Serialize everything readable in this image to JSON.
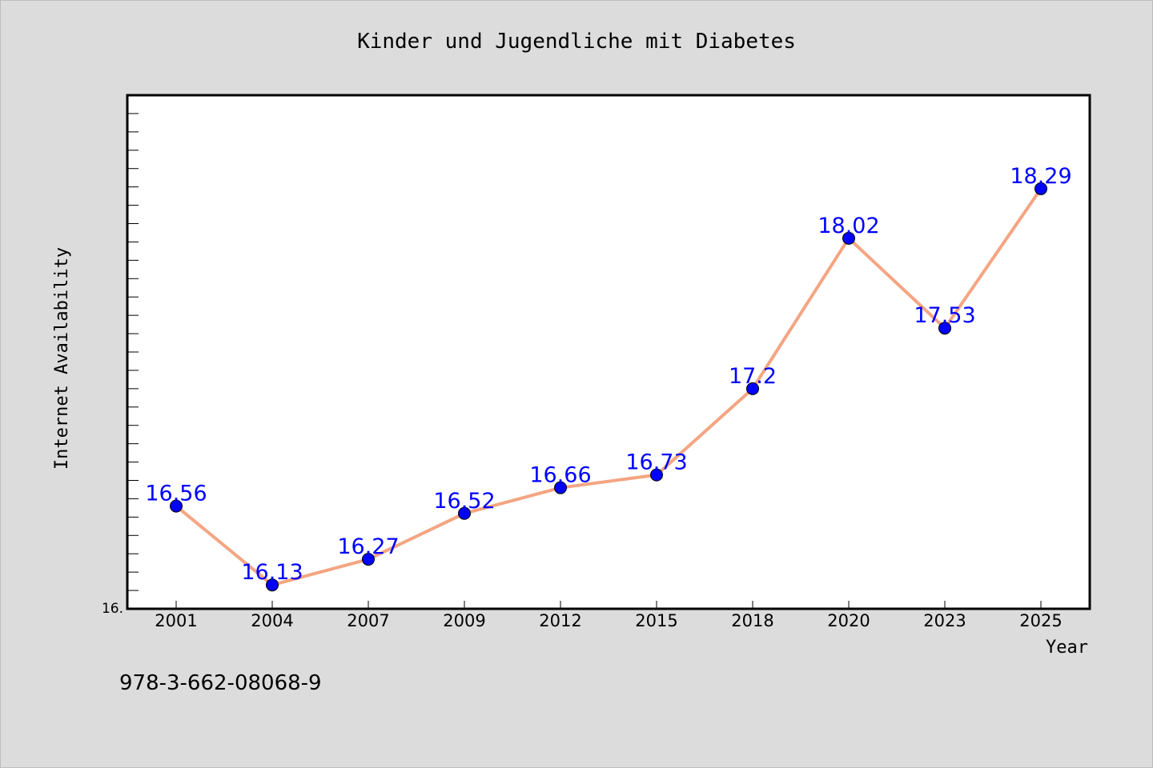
{
  "chart_data": {
    "type": "line",
    "title": "Kinder und Jugendliche mit Diabetes",
    "xlabel": "Year",
    "ylabel": "Internet Availability",
    "categories": [
      "2001",
      "2004",
      "2007",
      "2009",
      "2012",
      "2015",
      "2018",
      "2020",
      "2023",
      "2025"
    ],
    "series": [
      {
        "values": [
          16.56,
          16.13,
          16.27,
          16.52,
          16.66,
          16.73,
          17.2,
          18.02,
          17.53,
          18.29
        ],
        "data_labels": [
          "16.56",
          "16.13",
          "16.27",
          "16.52",
          "16.66",
          "16.73",
          "17.2",
          "18.02",
          "17.53",
          "18.29"
        ]
      }
    ],
    "ylim": [
      16.0,
      18.8
    ],
    "y_tick_label": "16.",
    "grid": false,
    "line_color": "#f4a582",
    "marker_color": "#0000ff",
    "label_color": "#0000ff"
  },
  "footer": {
    "isbn": "978-3-662-08068-9"
  }
}
